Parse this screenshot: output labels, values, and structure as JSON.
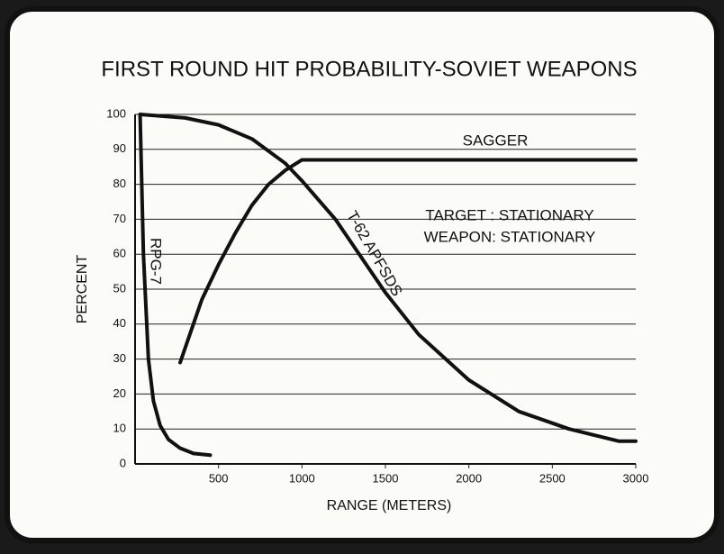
{
  "chart_data": {
    "type": "line",
    "title": "FIRST ROUND HIT PROBABILITY-SOVIET WEAPONS",
    "x_label": "RANGE (METERS)",
    "y_label": "PERCENT",
    "xlim": [
      0,
      3000
    ],
    "ylim": [
      0,
      100
    ],
    "xticks": [
      500,
      1000,
      1500,
      2000,
      2500,
      3000
    ],
    "yticks": [
      0,
      10,
      20,
      30,
      40,
      50,
      60,
      70,
      80,
      90,
      100
    ],
    "grid": true,
    "annotations": [
      "TARGET : STATIONARY",
      "WEAPON: STATIONARY"
    ],
    "series": [
      {
        "name": "RPG-7",
        "color": "#111111",
        "x": [
          30,
          50,
          80,
          110,
          150,
          200,
          270,
          350,
          450
        ],
        "values": [
          100,
          60,
          30,
          18,
          11,
          7,
          4.5,
          3,
          2.5
        ]
      },
      {
        "name": "T-62 APFSDS",
        "color": "#111111",
        "x": [
          30,
          300,
          500,
          700,
          900,
          1000,
          1200,
          1400,
          1500,
          1700,
          2000,
          2300,
          2600,
          2900,
          3000
        ],
        "values": [
          100,
          99,
          97,
          93,
          86,
          81,
          70,
          56,
          49,
          37,
          24,
          15,
          10,
          6.5,
          6.5
        ]
      },
      {
        "name": "SAGGER",
        "color": "#111111",
        "x": [
          270,
          400,
          500,
          600,
          700,
          800,
          900,
          1000,
          3000
        ],
        "values": [
          29,
          47,
          57,
          66,
          74,
          80,
          84,
          87,
          87
        ]
      }
    ]
  }
}
